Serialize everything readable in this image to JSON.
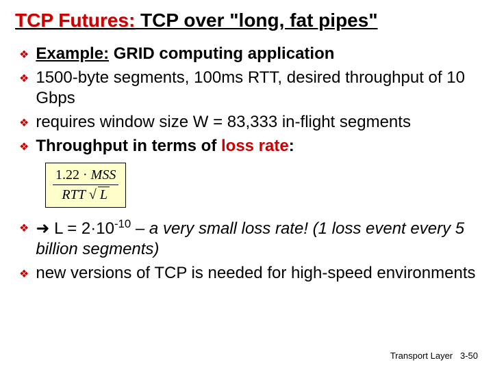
{
  "title": {
    "part1": "TCP Futures:",
    "part2": " TCP over \"long, fat pipes\""
  },
  "bullets1": [
    {
      "html": "<span class='underline bold'>Example:</span> <span class='bold'>GRID computing application</span>"
    },
    {
      "html": "1500-byte segments, 100ms RTT, desired throughput of 10 Gbps"
    },
    {
      "html": "requires window size W = 83,333 in-flight segments"
    },
    {
      "html": "<span class='bold'>Throughput in terms of </span><span class='bold red'>loss rate</span><span class='bold'>:</span>"
    }
  ],
  "formula": {
    "numerator": "1.22 · <span class='italic'>MSS</span>",
    "denominator": "<span class='italic'>RTT</span> √<span class='sqrt'><span class='italic'>L</span></span>"
  },
  "bullets2": [
    {
      "html": "➜ L = 2·10<sup>-10</sup> <span class='italic'>– a very small loss rate! (1 loss event every 5 billion segments)</span>"
    },
    {
      "html": "new versions of TCP is needed for high-speed environments"
    }
  ],
  "footer": {
    "label": "Transport Layer",
    "page": "3-50"
  },
  "colors": {
    "accent_red": "#cc0000",
    "formula_bg": "#ffffcc",
    "background": "#ffffff"
  }
}
